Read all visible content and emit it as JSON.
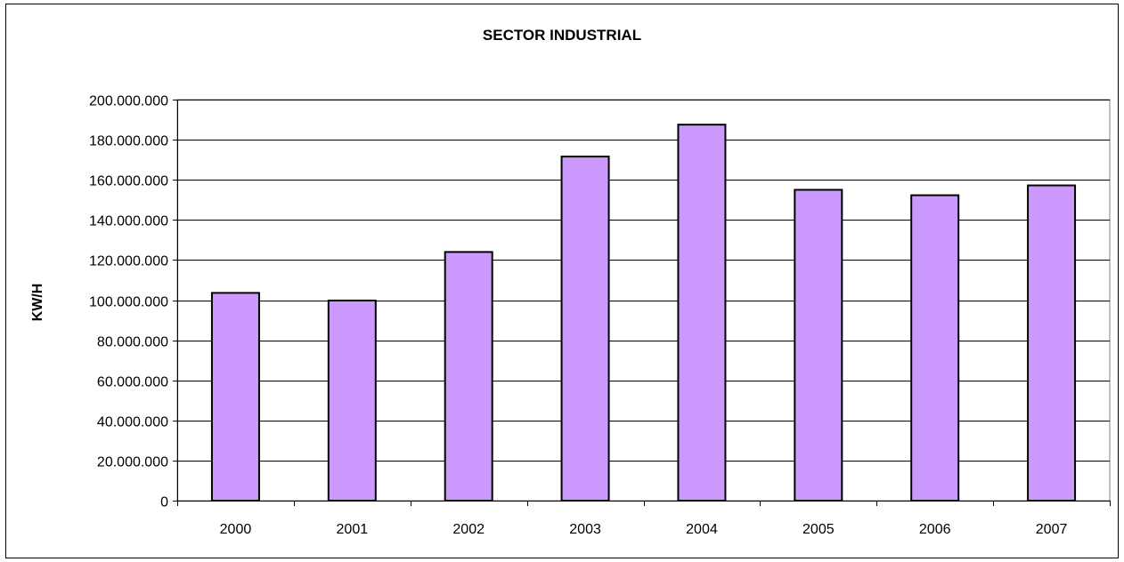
{
  "chart_data": {
    "type": "bar",
    "title": "SECTOR INDUSTRIAL",
    "xlabel": "",
    "ylabel": "KW/H",
    "categories": [
      "2000",
      "2001",
      "2002",
      "2003",
      "2004",
      "2005",
      "2006",
      "2007"
    ],
    "values": [
      103600000,
      99800000,
      124000000,
      171600000,
      187500000,
      155000000,
      152300000,
      157200000
    ],
    "ylim": [
      0,
      200000000
    ],
    "ytick_step": 20000000,
    "ytick_labels": [
      "0",
      "20.000.000",
      "40.000.000",
      "60.000.000",
      "80.000.000",
      "100.000.000",
      "120.000.000",
      "140.000.000",
      "160.000.000",
      "180.000.000",
      "200.000.000"
    ],
    "grid": true,
    "legend": "none",
    "bar_color": "#cc99ff",
    "plot_background": "#ffffff"
  }
}
